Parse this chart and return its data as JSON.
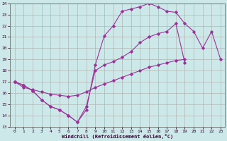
{
  "xlabel": "Windchill (Refroidissement éolien,°C)",
  "bg_color": "#cce8e8",
  "grid_color": "#aacccc",
  "line_color": "#993399",
  "xlim": [
    -0.5,
    23.5
  ],
  "ylim": [
    13,
    24
  ],
  "xticks": [
    0,
    1,
    2,
    3,
    4,
    5,
    6,
    7,
    8,
    9,
    10,
    11,
    12,
    13,
    14,
    15,
    16,
    17,
    18,
    19,
    20,
    21,
    22,
    23
  ],
  "yticks": [
    13,
    14,
    15,
    16,
    17,
    18,
    19,
    20,
    21,
    22,
    23,
    24
  ],
  "line1_x": [
    0,
    1,
    2,
    3,
    4,
    5,
    6,
    7,
    8,
    9,
    10,
    11,
    12,
    13,
    14,
    15,
    16,
    17,
    18,
    19,
    20,
    21,
    22,
    23
  ],
  "line1_y": [
    17.0,
    16.7,
    16.2,
    15.4,
    14.8,
    14.5,
    14.0,
    13.4,
    14.5,
    18.5,
    21.1,
    22.0,
    23.3,
    23.5,
    23.7,
    24.0,
    23.7,
    23.3,
    23.2,
    22.2,
    21.5,
    20.0,
    21.5,
    19.0
  ],
  "line2_x": [
    0,
    1,
    2,
    3,
    4,
    5,
    6,
    7,
    8,
    9,
    10,
    11,
    12,
    13,
    14,
    15,
    16,
    17,
    18,
    19,
    20,
    21,
    22,
    23
  ],
  "line2_y": [
    17.0,
    16.7,
    16.2,
    15.4,
    14.8,
    14.5,
    14.0,
    13.4,
    14.8,
    18.0,
    18.5,
    18.8,
    19.2,
    19.7,
    20.5,
    21.0,
    21.3,
    21.5,
    22.2,
    18.7,
    null,
    null,
    null,
    null
  ],
  "line3_x": [
    0,
    1,
    2,
    3,
    4,
    5,
    6,
    7,
    8,
    9,
    10,
    11,
    12,
    13,
    14,
    15,
    16,
    17,
    18,
    19,
    20,
    21,
    22,
    23
  ],
  "line3_y": [
    17.0,
    16.5,
    16.3,
    16.1,
    15.9,
    15.8,
    15.7,
    15.8,
    16.1,
    16.5,
    16.8,
    17.1,
    17.4,
    17.7,
    18.0,
    18.3,
    18.5,
    18.7,
    18.9,
    19.0,
    null,
    null,
    null,
    null
  ]
}
